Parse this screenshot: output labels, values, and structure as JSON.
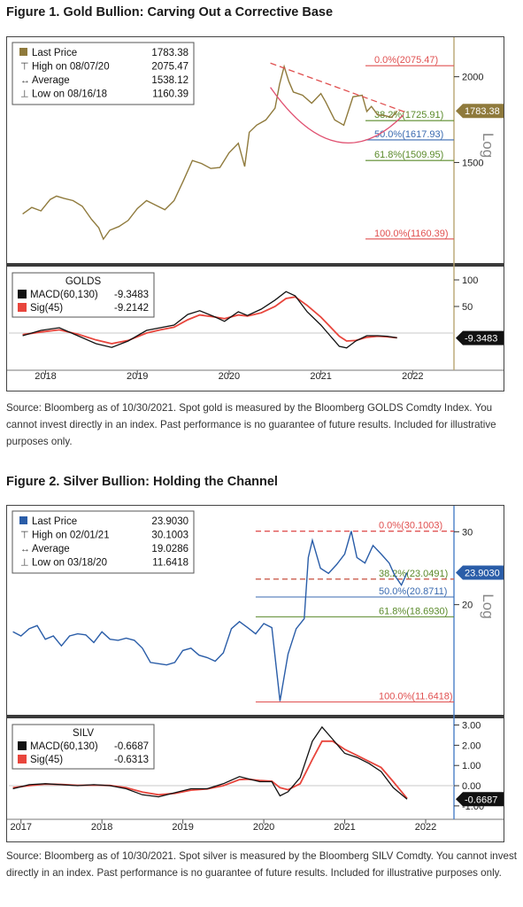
{
  "figures": [
    {
      "title": "Figure 1. Gold Bullion: Carving Out a Corrective Base",
      "source": "Source: Bloomberg as of 10/30/2021. Spot gold is measured by the Bloomberg GOLDS Comdty Index. You cannot invest directly in an index. Past performance is no guarantee of future results. Included for illustrative purposes only."
    },
    {
      "title": "Figure 2. Silver Bullion: Holding the Channel",
      "source": "Source: Bloomberg as of 10/30/2021. Spot silver is measured by the Bloomberg SILV Comdty. You cannot invest directly in an index. Past performance is no guarantee of future results. Included for illustrative purposes only."
    }
  ],
  "chart_data": [
    {
      "type": "line",
      "ticker": "GOLDS",
      "color": "#8f7a3c",
      "y_scale": "log",
      "x_ticks": [
        "2018",
        "2019",
        "2020",
        "2021",
        "2022"
      ],
      "price_ticks": [
        "1500",
        "2000"
      ],
      "scale_label": "Log",
      "price_ylim": [
        1080,
        2230
      ],
      "legend": [
        {
          "label": "Last Price",
          "value": "1783.38"
        },
        {
          "label": "High on 08/07/20",
          "value": "2075.47"
        },
        {
          "label": "Average",
          "value": "1538.12"
        },
        {
          "label": "Low on 08/16/18",
          "value": "1160.39"
        }
      ],
      "last_price_tag": "1783.38",
      "fib_levels": [
        {
          "label": "0.0%(2075.47)",
          "value": 2075.47,
          "color": "#e05050"
        },
        {
          "label": "38.2%(1725.91)",
          "value": 1725.91,
          "color": "#5a8a2a"
        },
        {
          "label": "50.0%(1617.93)",
          "value": 1617.93,
          "color": "#3a6ab0"
        },
        {
          "label": "61.8%(1509.95)",
          "value": 1509.95,
          "color": "#5a8a2a"
        },
        {
          "label": "100.0%(1160.39)",
          "value": 1160.39,
          "color": "#e05050"
        }
      ],
      "price_series": [
        [
          2017.75,
          1262
        ],
        [
          2017.85,
          1290
        ],
        [
          2017.95,
          1275
        ],
        [
          2018.05,
          1325
        ],
        [
          2018.12,
          1340
        ],
        [
          2018.2,
          1330
        ],
        [
          2018.3,
          1320
        ],
        [
          2018.4,
          1295
        ],
        [
          2018.5,
          1240
        ],
        [
          2018.58,
          1205
        ],
        [
          2018.63,
          1160
        ],
        [
          2018.7,
          1195
        ],
        [
          2018.8,
          1210
        ],
        [
          2018.9,
          1235
        ],
        [
          2019.0,
          1285
        ],
        [
          2019.1,
          1320
        ],
        [
          2019.2,
          1300
        ],
        [
          2019.3,
          1280
        ],
        [
          2019.4,
          1320
        ],
        [
          2019.5,
          1410
        ],
        [
          2019.6,
          1510
        ],
        [
          2019.7,
          1495
        ],
        [
          2019.8,
          1470
        ],
        [
          2019.9,
          1475
        ],
        [
          2020.0,
          1550
        ],
        [
          2020.1,
          1600
        ],
        [
          2020.17,
          1480
        ],
        [
          2020.22,
          1660
        ],
        [
          2020.3,
          1700
        ],
        [
          2020.4,
          1730
        ],
        [
          2020.5,
          1800
        ],
        [
          2020.55,
          1950
        ],
        [
          2020.6,
          2070
        ],
        [
          2020.65,
          1970
        ],
        [
          2020.7,
          1900
        ],
        [
          2020.8,
          1880
        ],
        [
          2020.9,
          1830
        ],
        [
          2021.0,
          1890
        ],
        [
          2021.05,
          1840
        ],
        [
          2021.15,
          1730
        ],
        [
          2021.25,
          1700
        ],
        [
          2021.35,
          1870
        ],
        [
          2021.45,
          1880
        ],
        [
          2021.5,
          1780
        ],
        [
          2021.55,
          1810
        ],
        [
          2021.62,
          1760
        ],
        [
          2021.7,
          1755
        ],
        [
          2021.77,
          1745
        ],
        [
          2021.83,
          1783
        ]
      ],
      "macd_ticks": [
        "50",
        "100"
      ],
      "macd_ylim": [
        -60,
        120
      ],
      "macd_legend": [
        {
          "label": "MACD(60,130)",
          "value": "-9.3483"
        },
        {
          "label": "Sig(45)",
          "value": "-9.2142"
        }
      ],
      "macd_tag": "-9.3483",
      "macd_series": [
        [
          2017.75,
          -5
        ],
        [
          2017.95,
          5
        ],
        [
          2018.15,
          10
        ],
        [
          2018.35,
          -5
        ],
        [
          2018.55,
          -20
        ],
        [
          2018.72,
          -27
        ],
        [
          2018.9,
          -15
        ],
        [
          2019.1,
          5
        ],
        [
          2019.25,
          10
        ],
        [
          2019.4,
          15
        ],
        [
          2019.55,
          35
        ],
        [
          2019.68,
          42
        ],
        [
          2019.85,
          30
        ],
        [
          2019.95,
          22
        ],
        [
          2020.1,
          40
        ],
        [
          2020.2,
          33
        ],
        [
          2020.35,
          45
        ],
        [
          2020.5,
          62
        ],
        [
          2020.62,
          78
        ],
        [
          2020.72,
          70
        ],
        [
          2020.85,
          40
        ],
        [
          2021.0,
          15
        ],
        [
          2021.1,
          -5
        ],
        [
          2021.2,
          -25
        ],
        [
          2021.28,
          -28
        ],
        [
          2021.38,
          -15
        ],
        [
          2021.5,
          -5
        ],
        [
          2021.62,
          -5
        ],
        [
          2021.72,
          -6
        ],
        [
          2021.83,
          -9
        ]
      ],
      "signal_series": [
        [
          2017.75,
          -3
        ],
        [
          2017.95,
          2
        ],
        [
          2018.15,
          6
        ],
        [
          2018.35,
          -2
        ],
        [
          2018.55,
          -13
        ],
        [
          2018.72,
          -20
        ],
        [
          2018.9,
          -14
        ],
        [
          2019.1,
          0
        ],
        [
          2019.25,
          6
        ],
        [
          2019.4,
          11
        ],
        [
          2019.55,
          25
        ],
        [
          2019.68,
          34
        ],
        [
          2019.85,
          30
        ],
        [
          2019.95,
          27
        ],
        [
          2020.1,
          34
        ],
        [
          2020.2,
          32
        ],
        [
          2020.35,
          38
        ],
        [
          2020.5,
          50
        ],
        [
          2020.62,
          65
        ],
        [
          2020.72,
          68
        ],
        [
          2020.85,
          52
        ],
        [
          2021.0,
          30
        ],
        [
          2021.1,
          12
        ],
        [
          2021.2,
          -6
        ],
        [
          2021.28,
          -15
        ],
        [
          2021.38,
          -14
        ],
        [
          2021.5,
          -8
        ],
        [
          2021.62,
          -6
        ],
        [
          2021.72,
          -7
        ],
        [
          2021.83,
          -9
        ]
      ]
    },
    {
      "type": "line",
      "ticker": "SILV",
      "color": "#2a5da8",
      "y_scale": "log",
      "x_ticks": [
        "2017",
        "2018",
        "2019",
        "2020",
        "2021",
        "2022"
      ],
      "price_ticks": [
        "20",
        "30"
      ],
      "scale_label": "Log",
      "price_ylim": [
        11.0,
        33.0
      ],
      "legend": [
        {
          "label": "Last Price",
          "value": "23.9030"
        },
        {
          "label": "High on 02/01/21",
          "value": "30.1003"
        },
        {
          "label": "Average",
          "value": "19.0286"
        },
        {
          "label": "Low on 03/18/20",
          "value": "11.6418"
        }
      ],
      "last_price_tag": "23.9030",
      "fib_levels": [
        {
          "label": "0.0%(30.1003)",
          "value": 30.1003,
          "color": "#e05050"
        },
        {
          "label": "38.2%(23.0491)",
          "value": 23.0491,
          "color": "#5a8a2a"
        },
        {
          "label": "50.0%(20.8711)",
          "value": 20.8711,
          "color": "#3a6ab0"
        },
        {
          "label": "61.8%(18.6930)",
          "value": 18.693,
          "color": "#5a8a2a"
        },
        {
          "label": "100.0%(11.6418)",
          "value": 11.6418,
          "color": "#e05050"
        }
      ],
      "price_series": [
        [
          2016.9,
          17.2
        ],
        [
          2017.0,
          16.8
        ],
        [
          2017.1,
          17.5
        ],
        [
          2017.2,
          17.8
        ],
        [
          2017.3,
          16.5
        ],
        [
          2017.4,
          16.8
        ],
        [
          2017.5,
          15.9
        ],
        [
          2017.6,
          16.8
        ],
        [
          2017.7,
          17.0
        ],
        [
          2017.8,
          16.9
        ],
        [
          2017.9,
          16.2
        ],
        [
          2018.0,
          17.2
        ],
        [
          2018.1,
          16.5
        ],
        [
          2018.2,
          16.4
        ],
        [
          2018.3,
          16.6
        ],
        [
          2018.4,
          16.4
        ],
        [
          2018.5,
          15.7
        ],
        [
          2018.6,
          14.5
        ],
        [
          2018.7,
          14.4
        ],
        [
          2018.8,
          14.3
        ],
        [
          2018.9,
          14.5
        ],
        [
          2019.0,
          15.5
        ],
        [
          2019.1,
          15.7
        ],
        [
          2019.2,
          15.1
        ],
        [
          2019.3,
          14.9
        ],
        [
          2019.4,
          14.6
        ],
        [
          2019.5,
          15.3
        ],
        [
          2019.6,
          17.5
        ],
        [
          2019.7,
          18.2
        ],
        [
          2019.8,
          17.6
        ],
        [
          2019.9,
          17.0
        ],
        [
          2020.0,
          18.0
        ],
        [
          2020.1,
          17.6
        ],
        [
          2020.2,
          11.7
        ],
        [
          2020.3,
          15.2
        ],
        [
          2020.4,
          17.5
        ],
        [
          2020.5,
          18.5
        ],
        [
          2020.55,
          26.0
        ],
        [
          2020.6,
          28.6
        ],
        [
          2020.7,
          24.5
        ],
        [
          2020.8,
          23.8
        ],
        [
          2020.9,
          25.0
        ],
        [
          2021.0,
          26.5
        ],
        [
          2021.08,
          30.1
        ],
        [
          2021.15,
          26.0
        ],
        [
          2021.25,
          25.2
        ],
        [
          2021.35,
          27.8
        ],
        [
          2021.45,
          26.5
        ],
        [
          2021.55,
          25.2
        ],
        [
          2021.62,
          23.5
        ],
        [
          2021.7,
          22.3
        ],
        [
          2021.77,
          23.9
        ]
      ],
      "macd_ticks": [
        "-1.00",
        "0.00",
        "1.00",
        "2.00",
        "3.00"
      ],
      "macd_ylim": [
        -1.4,
        3.2
      ],
      "macd_legend": [
        {
          "label": "MACD(60,130)",
          "value": "-0.6687"
        },
        {
          "label": "Sig(45)",
          "value": "-0.6313"
        }
      ],
      "macd_tag": "-0.6687",
      "macd_series": [
        [
          2016.9,
          -0.15
        ],
        [
          2017.1,
          0.05
        ],
        [
          2017.3,
          0.1
        ],
        [
          2017.5,
          0.05
        ],
        [
          2017.7,
          0.0
        ],
        [
          2017.9,
          0.05
        ],
        [
          2018.1,
          0.0
        ],
        [
          2018.3,
          -0.15
        ],
        [
          2018.5,
          -0.45
        ],
        [
          2018.7,
          -0.55
        ],
        [
          2018.9,
          -0.35
        ],
        [
          2019.1,
          -0.15
        ],
        [
          2019.3,
          -0.15
        ],
        [
          2019.5,
          0.1
        ],
        [
          2019.7,
          0.45
        ],
        [
          2019.8,
          0.35
        ],
        [
          2019.95,
          0.2
        ],
        [
          2020.1,
          0.2
        ],
        [
          2020.2,
          -0.5
        ],
        [
          2020.3,
          -0.3
        ],
        [
          2020.45,
          0.4
        ],
        [
          2020.6,
          2.2
        ],
        [
          2020.72,
          2.9
        ],
        [
          2020.85,
          2.3
        ],
        [
          2021.0,
          1.6
        ],
        [
          2021.15,
          1.4
        ],
        [
          2021.3,
          1.1
        ],
        [
          2021.45,
          0.7
        ],
        [
          2021.6,
          -0.1
        ],
        [
          2021.77,
          -0.67
        ]
      ],
      "signal_series": [
        [
          2016.9,
          -0.1
        ],
        [
          2017.1,
          0.0
        ],
        [
          2017.3,
          0.08
        ],
        [
          2017.5,
          0.06
        ],
        [
          2017.7,
          0.02
        ],
        [
          2017.9,
          0.03
        ],
        [
          2018.1,
          0.01
        ],
        [
          2018.3,
          -0.1
        ],
        [
          2018.5,
          -0.32
        ],
        [
          2018.7,
          -0.45
        ],
        [
          2018.9,
          -0.38
        ],
        [
          2019.1,
          -0.22
        ],
        [
          2019.3,
          -0.16
        ],
        [
          2019.5,
          0.0
        ],
        [
          2019.7,
          0.3
        ],
        [
          2019.8,
          0.32
        ],
        [
          2019.95,
          0.26
        ],
        [
          2020.1,
          0.22
        ],
        [
          2020.2,
          -0.1
        ],
        [
          2020.3,
          -0.2
        ],
        [
          2020.45,
          0.1
        ],
        [
          2020.6,
          1.3
        ],
        [
          2020.72,
          2.2
        ],
        [
          2020.85,
          2.2
        ],
        [
          2021.0,
          1.8
        ],
        [
          2021.15,
          1.5
        ],
        [
          2021.3,
          1.2
        ],
        [
          2021.45,
          0.9
        ],
        [
          2021.6,
          0.2
        ],
        [
          2021.77,
          -0.63
        ]
      ]
    }
  ]
}
